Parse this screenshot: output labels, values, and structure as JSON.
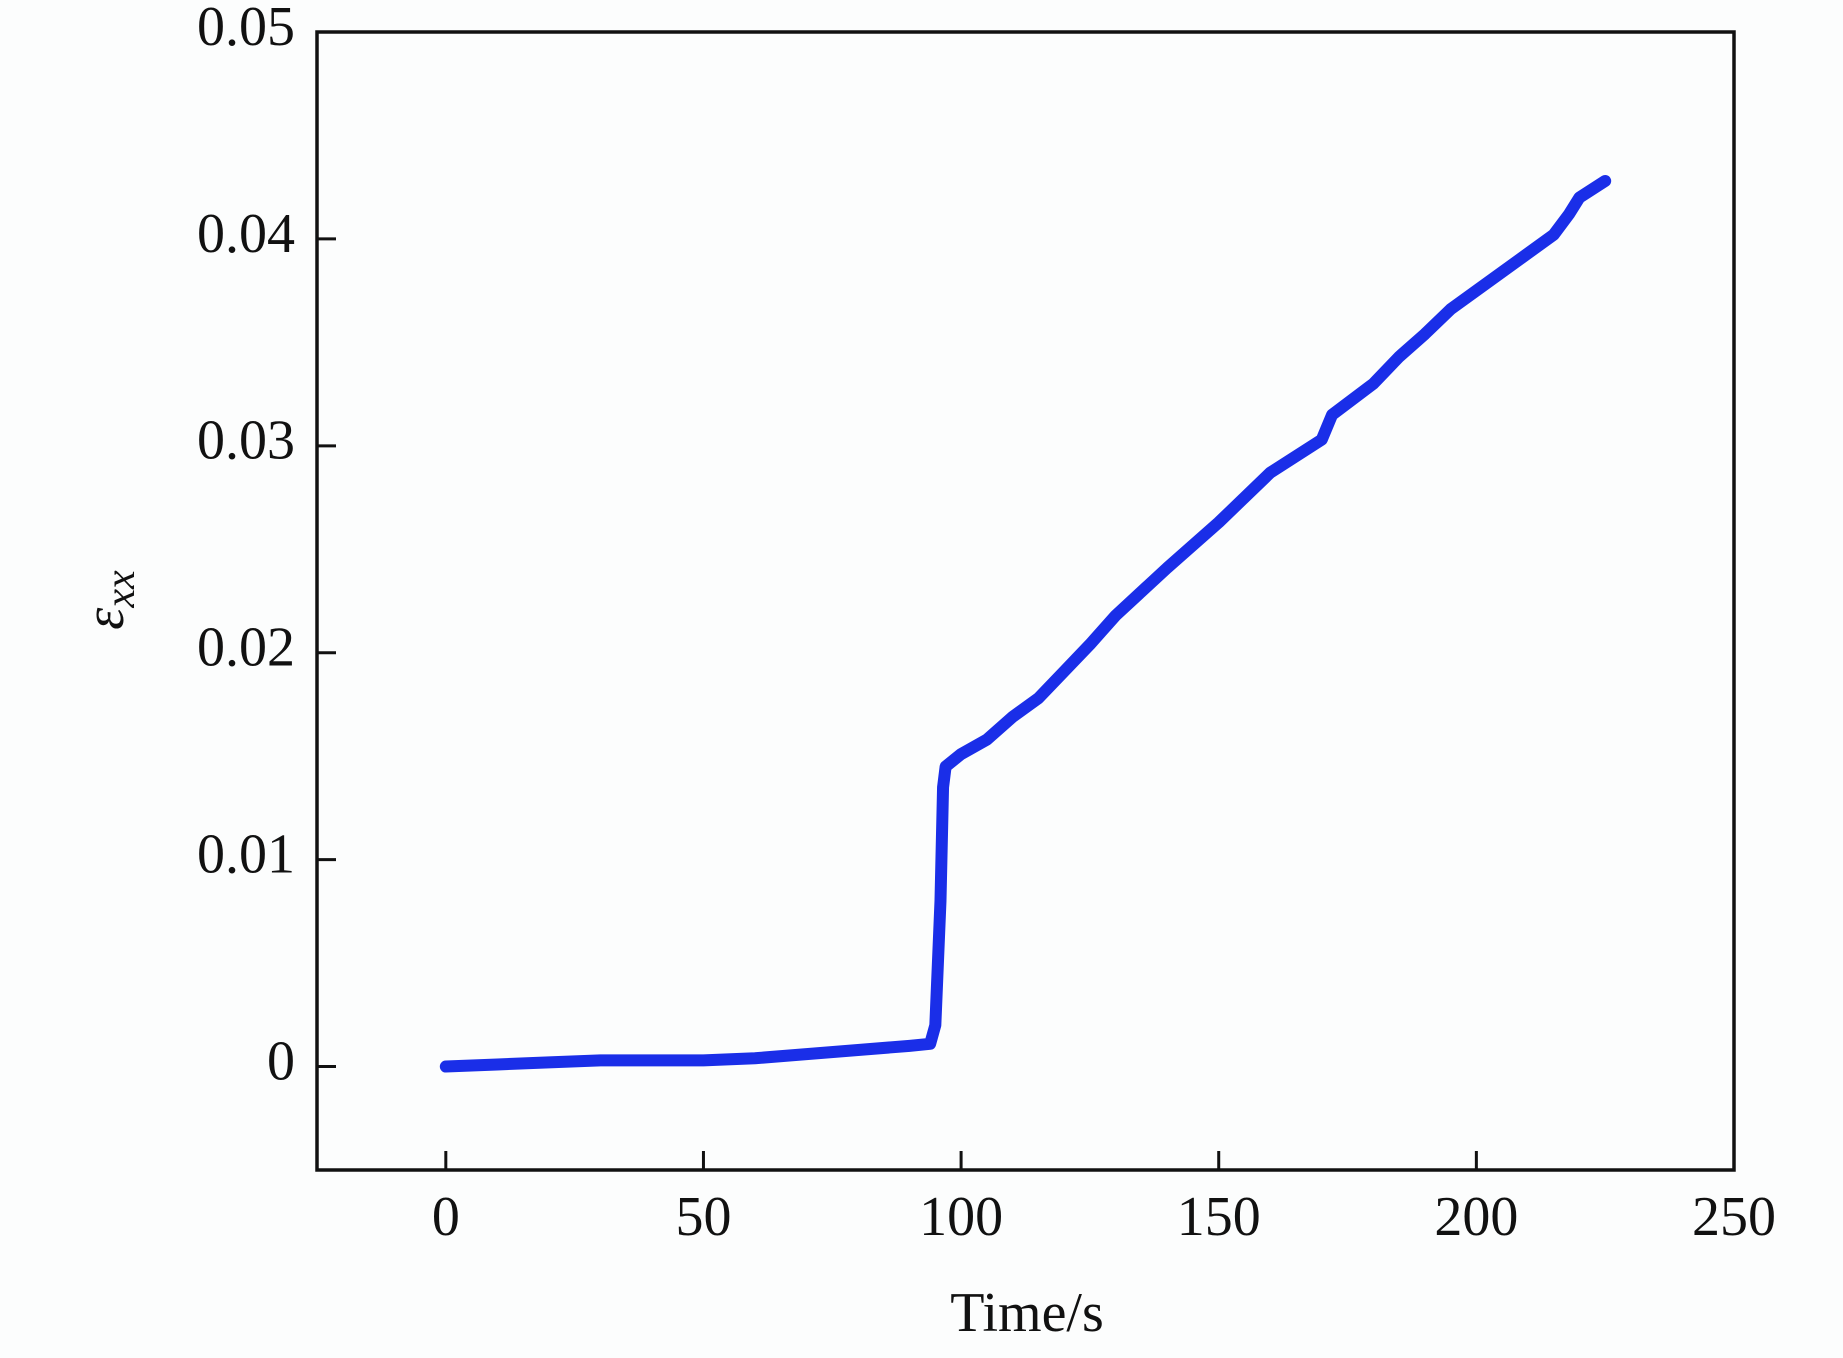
{
  "chart_data": {
    "type": "line",
    "x_label": "Time/s",
    "y_label": "ε",
    "y_label_sub": "xx",
    "x": [
      0,
      10,
      20,
      30,
      40,
      50,
      60,
      70,
      80,
      90,
      94,
      95,
      96,
      96.5,
      97,
      100,
      105,
      110,
      115,
      120,
      125,
      130,
      140,
      150,
      160,
      170,
      172,
      180,
      185,
      190,
      195,
      200,
      210,
      215,
      218,
      220,
      225
    ],
    "series": [
      {
        "color": "#1a2ee8",
        "values": [
          0,
          0.0001,
          0.0002,
          0.0003,
          0.0003,
          0.0003,
          0.0004,
          0.0006,
          0.0008,
          0.001,
          0.0011,
          0.002,
          0.008,
          0.0135,
          0.0145,
          0.0151,
          0.0158,
          0.0169,
          0.0178,
          0.0191,
          0.0204,
          0.0218,
          0.0241,
          0.0263,
          0.0287,
          0.0303,
          0.0315,
          0.033,
          0.0343,
          0.0354,
          0.0366,
          0.0375,
          0.0393,
          0.0402,
          0.0412,
          0.042,
          0.0428
        ]
      }
    ],
    "xlim": [
      -25,
      250
    ],
    "xticks": [
      0,
      50,
      100,
      150,
      200,
      250
    ],
    "ylim": [
      -0.005,
      0.05
    ],
    "yticks": [
      0,
      0.01,
      0.02,
      0.03,
      0.04,
      0.05
    ]
  }
}
